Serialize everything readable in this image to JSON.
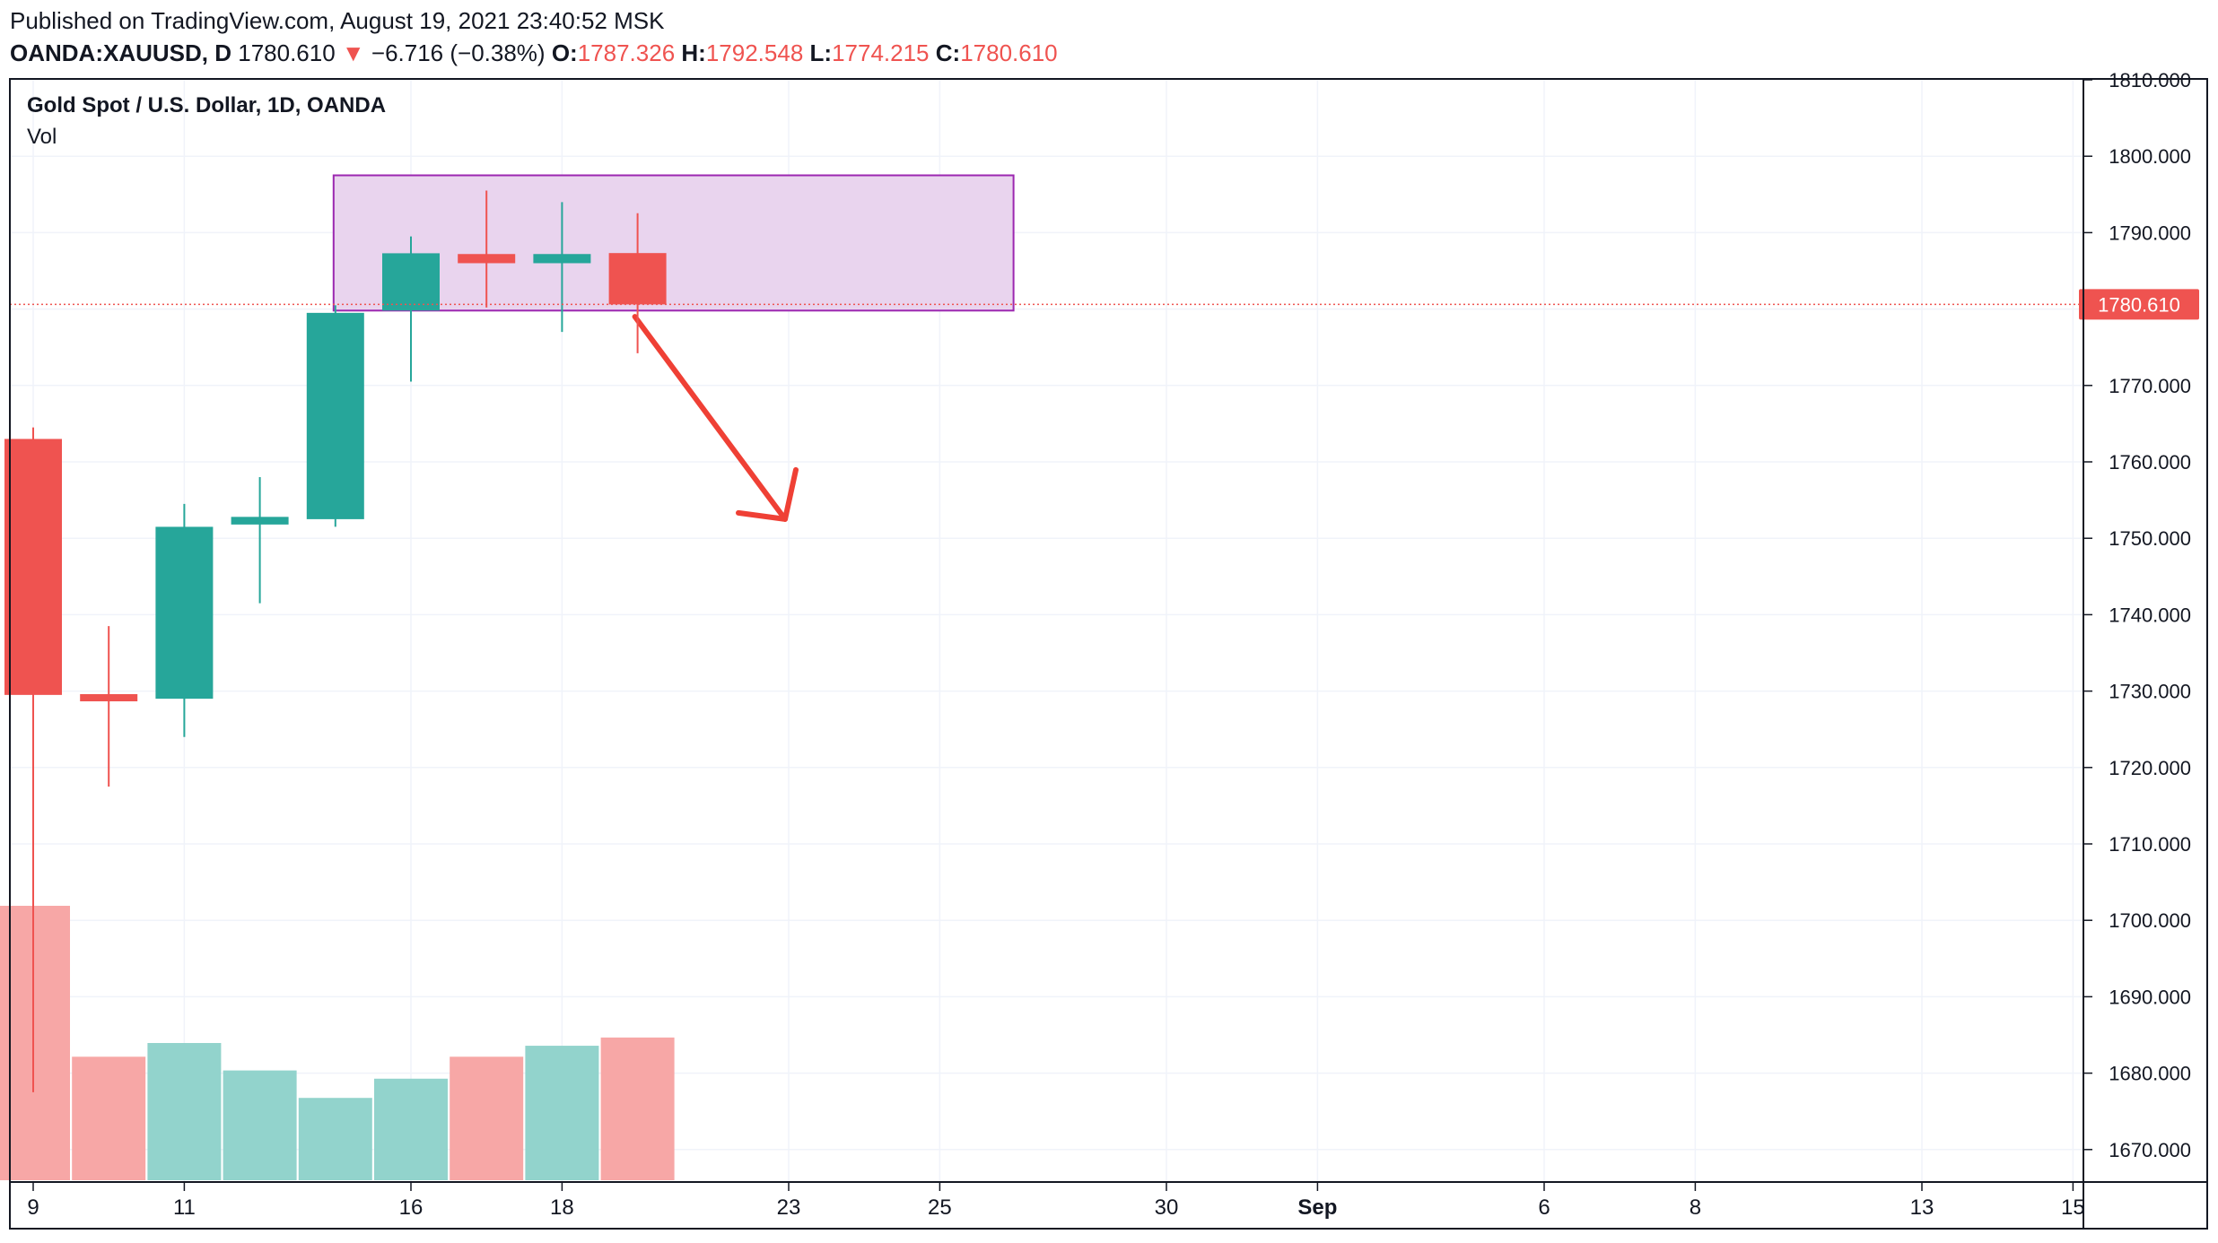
{
  "header": {
    "published": "Published on TradingView.com, August 19, 2021 23:40:52 MSK",
    "symbol": "OANDA:XAUUSD, D",
    "last": "1780.610",
    "change_arrow": "▼",
    "change": "−6.716 (−0.38%)",
    "open_label": "O:",
    "open": "1787.326",
    "high_label": "H:",
    "high": "1792.548",
    "low_label": "L:",
    "low": "1774.215",
    "close_label": "C:",
    "close": "1780.610"
  },
  "legend": {
    "title": "Gold Spot / U.S. Dollar, 1D, OANDA",
    "volume": "Vol"
  },
  "colors": {
    "up": "#26a69a",
    "down": "#ef5350",
    "up_volume": "#92d3cc",
    "down_volume": "#f7a7a6",
    "grid": "#f0f3fa",
    "box_fill": "#e9d4ee",
    "box_stroke": "#9c27b0",
    "arrow": "#ef4035"
  },
  "chart_data": {
    "type": "candlestick",
    "title": "Gold Spot / U.S. Dollar, 1D, OANDA",
    "y_axis": {
      "position": "right",
      "range": [
        1666,
        1811
      ],
      "ticks": [
        "1810.000",
        "1800.000",
        "1790.000",
        "1780.000",
        "1770.000",
        "1760.000",
        "1750.000",
        "1740.000",
        "1730.000",
        "1720.000",
        "1710.000",
        "1700.000",
        "1690.000",
        "1680.000",
        "1670.000"
      ]
    },
    "x_axis": {
      "ticks": [
        {
          "label": "9",
          "slot": 0
        },
        {
          "label": "11",
          "slot": 2
        },
        {
          "label": "16",
          "slot": 5
        },
        {
          "label": "18",
          "slot": 7
        },
        {
          "label": "23",
          "slot": 10
        },
        {
          "label": "25",
          "slot": 12
        },
        {
          "label": "30",
          "slot": 15
        },
        {
          "label": "Sep",
          "slot": 17,
          "bold": true
        },
        {
          "label": "6",
          "slot": 20
        },
        {
          "label": "8",
          "slot": 22
        },
        {
          "label": "13",
          "slot": 25
        },
        {
          "label": "15",
          "slot": 27
        }
      ]
    },
    "candles": [
      {
        "date": "2021-08-09",
        "open": 1763.0,
        "high": 1764.5,
        "low": 1677.5,
        "close": 1729.5,
        "volume": 1.0
      },
      {
        "date": "2021-08-10",
        "open": 1729.6,
        "high": 1738.5,
        "low": 1717.5,
        "close": 1729.0,
        "volume": 0.45
      },
      {
        "date": "2021-08-11",
        "open": 1729.0,
        "high": 1754.5,
        "low": 1724.0,
        "close": 1751.5,
        "volume": 0.5
      },
      {
        "date": "2021-08-12",
        "open": 1751.8,
        "high": 1758.0,
        "low": 1741.5,
        "close": 1752.8,
        "volume": 0.4
      },
      {
        "date": "2021-08-13",
        "open": 1752.5,
        "high": 1780.5,
        "low": 1751.5,
        "close": 1779.5,
        "volume": 0.3
      },
      {
        "date": "2021-08-16",
        "open": 1779.8,
        "high": 1789.5,
        "low": 1770.5,
        "close": 1787.3,
        "volume": 0.37
      },
      {
        "date": "2021-08-17",
        "open": 1787.2,
        "high": 1795.5,
        "low": 1780.2,
        "close": 1786.0,
        "volume": 0.45
      },
      {
        "date": "2021-08-18",
        "open": 1786.0,
        "high": 1794.0,
        "low": 1777.0,
        "close": 1787.2,
        "volume": 0.49
      },
      {
        "date": "2021-08-19",
        "open": 1787.326,
        "high": 1792.548,
        "low": 1774.215,
        "close": 1780.61,
        "volume": 0.52
      }
    ],
    "last_price": {
      "value": 1780.61,
      "label": "1780.610"
    },
    "annotations": [
      {
        "type": "rectangle",
        "from_slot": 4,
        "to_slot": 13,
        "price_top": 1797.5,
        "price_bottom": 1779.8
      },
      {
        "type": "arrow",
        "direction": "down-right",
        "from_slot": 8,
        "from_price": 1779.0,
        "to_slot": 10,
        "to_price": 1752.5
      }
    ]
  }
}
